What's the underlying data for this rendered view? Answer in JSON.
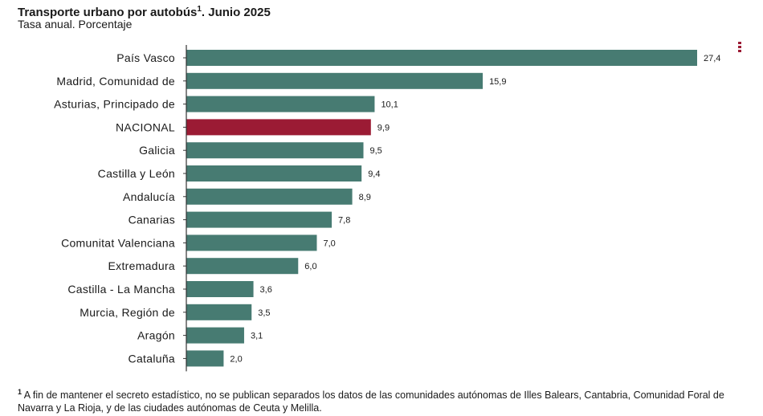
{
  "header": {
    "title": "Transporte urbano por autobús",
    "title_sup": "1",
    "title_suffix": ". Junio 2025",
    "subtitle": "Tasa anual. Porcentaje"
  },
  "menu_icon": "vertical-dots-menu-icon",
  "chart_data": {
    "type": "bar",
    "orientation": "horizontal",
    "title": "Transporte urbano por autobús¹. Junio 2025",
    "subtitle": "Tasa anual. Porcentaje",
    "categories": [
      "País Vasco",
      "Madrid, Comunidad de",
      "Asturias, Principado de",
      "NACIONAL",
      "Galicia",
      "Castilla y León",
      "Andalucía",
      "Canarias",
      "Comunitat Valenciana",
      "Extremadura",
      "Castilla - La Mancha",
      "Murcia, Región de",
      "Aragón",
      "Cataluña"
    ],
    "values": [
      27.4,
      15.9,
      10.1,
      9.9,
      9.5,
      9.4,
      8.9,
      7.8,
      7.0,
      6.0,
      3.6,
      3.5,
      3.1,
      2.0
    ],
    "value_labels": [
      "27,4",
      "15,9",
      "10,1",
      "9,9",
      "9,5",
      "9,4",
      "8,9",
      "7,8",
      "7,0",
      "6,0",
      "3,6",
      "3,5",
      "3,1",
      "2,0"
    ],
    "highlight": "NACIONAL",
    "colors": {
      "bar": "#477b72",
      "highlight": "#9b1b34",
      "axis": "#333333"
    },
    "xlim": [
      0,
      27.4
    ],
    "grid": false,
    "legend": "none"
  },
  "footnote": {
    "marker": "1",
    "text": " A fin de mantener el secreto estadístico, no se publican separados los datos de las comunidades autónomas de Illes Balears, Cantabria, Comunidad Foral de Navarra y La Rioja, y de las ciudades autónomas de Ceuta y Melilla."
  }
}
